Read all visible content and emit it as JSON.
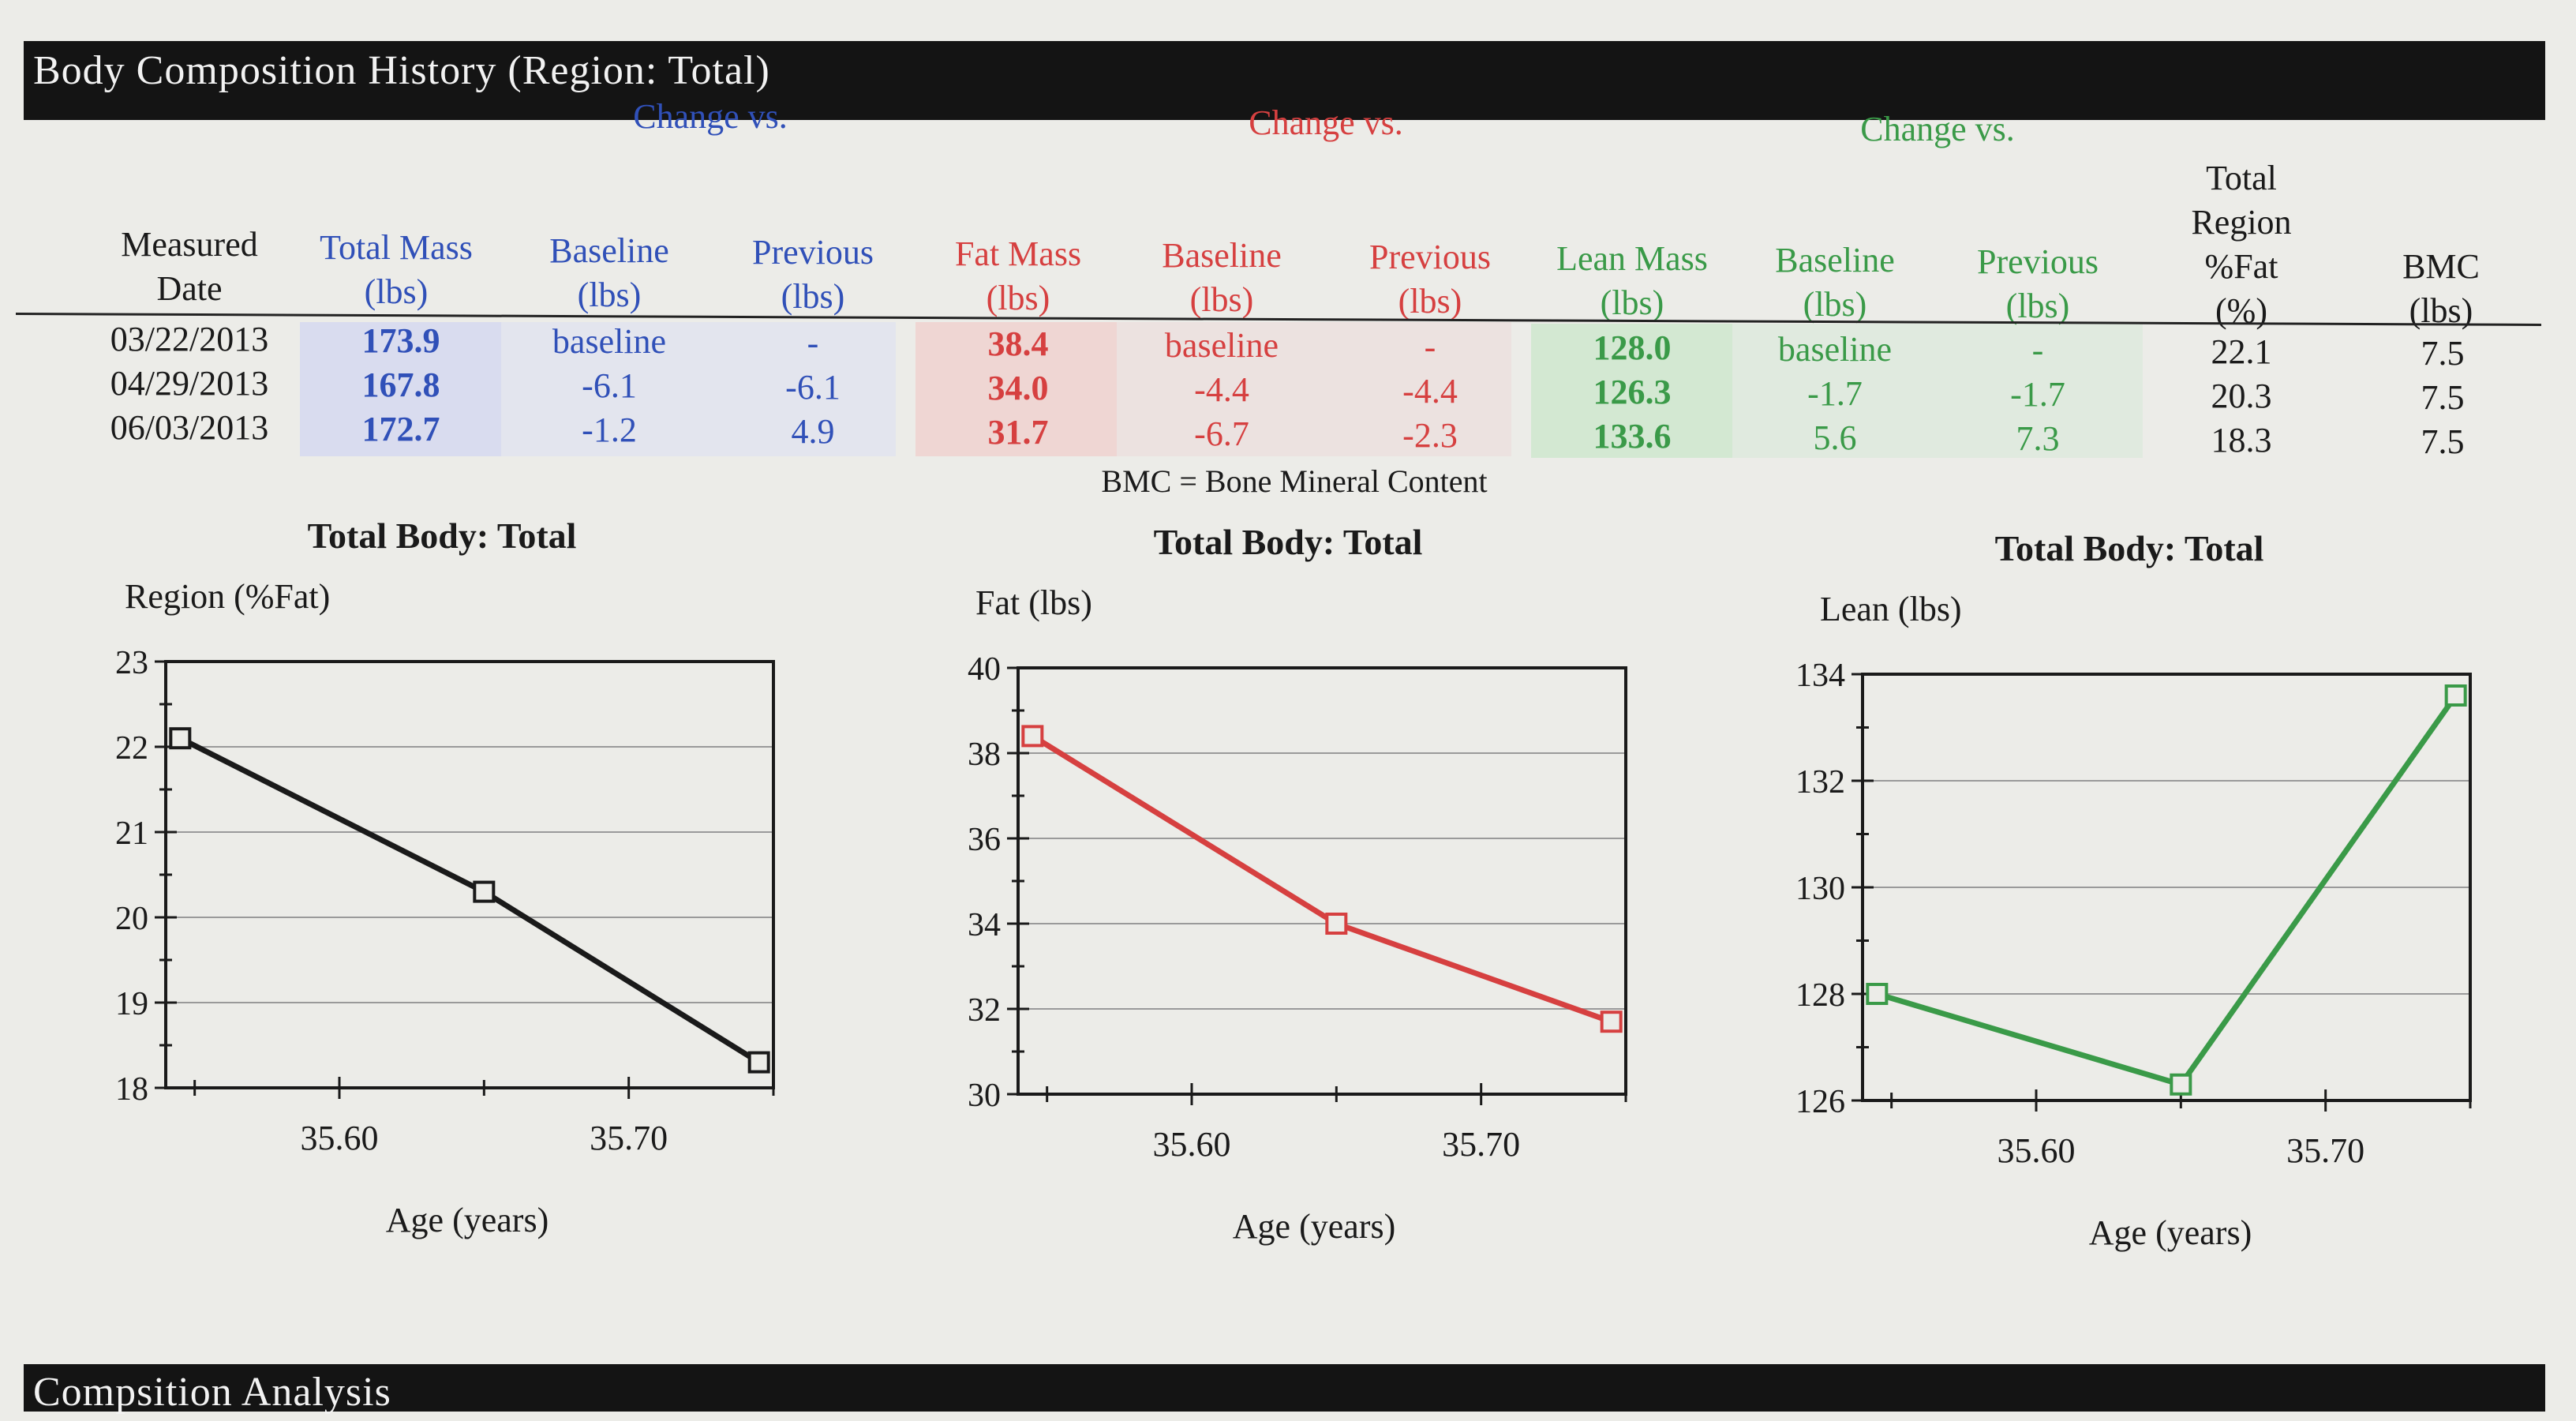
{
  "header": {
    "title": "Body Composition History (Region: Total)"
  },
  "footer": {
    "title": "Compsition Analysis"
  },
  "table": {
    "group_labels": {
      "total": "Change vs.",
      "fat": "Change vs.",
      "lean": "Change vs."
    },
    "columns": {
      "date": "Measured\nDate",
      "total_mass": "Total Mass\n(lbs)",
      "total_baseline": "Baseline\n(lbs)",
      "total_previous": "Previous\n(lbs)",
      "fat_mass": "Fat Mass\n(lbs)",
      "fat_baseline": "Baseline\n(lbs)",
      "fat_previous": "Previous\n(lbs)",
      "lean_mass": "Lean Mass\n(lbs)",
      "lean_baseline": "Baseline\n(lbs)",
      "lean_previous": "Previous\n(lbs)",
      "region_fat": "Total\nRegion\n%Fat\n(%)",
      "bmc": "BMC\n(lbs)"
    },
    "rows": [
      {
        "date": "03/22/2013",
        "total_mass": "173.9",
        "total_baseline": "baseline",
        "total_previous": "-",
        "fat_mass": "38.4",
        "fat_baseline": "baseline",
        "fat_previous": "-",
        "lean_mass": "128.0",
        "lean_baseline": "baseline",
        "lean_previous": "-",
        "region_fat": "22.1",
        "bmc": "7.5"
      },
      {
        "date": "04/29/2013",
        "total_mass": "167.8",
        "total_baseline": "-6.1",
        "total_previous": "-6.1",
        "fat_mass": "34.0",
        "fat_baseline": "-4.4",
        "fat_previous": "-4.4",
        "lean_mass": "126.3",
        "lean_baseline": "-1.7",
        "lean_previous": "-1.7",
        "region_fat": "20.3",
        "bmc": "7.5"
      },
      {
        "date": "06/03/2013",
        "total_mass": "172.7",
        "total_baseline": "-1.2",
        "total_previous": "4.9",
        "fat_mass": "31.7",
        "fat_baseline": "-6.7",
        "fat_previous": "-2.3",
        "lean_mass": "133.6",
        "lean_baseline": "5.6",
        "lean_previous": "7.3",
        "region_fat": "18.3",
        "bmc": "7.5"
      }
    ],
    "footnote": "BMC = Bone Mineral Content"
  },
  "colors": {
    "total": "#3050b8",
    "fat": "#d64040",
    "lean": "#3a9a48",
    "region": "#1a1a1a"
  },
  "chart_data": [
    {
      "type": "line",
      "title": "Total Body: Total",
      "ylabel": "Region (%Fat)",
      "xlabel": "Age (years)",
      "x": [
        35.545,
        35.65,
        35.745
      ],
      "values": [
        22.1,
        20.3,
        18.3
      ],
      "xlim": [
        35.54,
        35.75
      ],
      "ylim": [
        18,
        23
      ],
      "yticks": [
        18,
        19,
        20,
        21,
        22,
        23
      ],
      "xticks": [
        35.6,
        35.7
      ],
      "xtick_labels": [
        "35.60",
        "35.70"
      ],
      "grid": true,
      "color": "#1a1a1a"
    },
    {
      "type": "line",
      "title": "Total Body: Total",
      "ylabel": "Fat (lbs)",
      "xlabel": "Age (years)",
      "x": [
        35.545,
        35.65,
        35.745
      ],
      "values": [
        38.4,
        34.0,
        31.7
      ],
      "xlim": [
        35.54,
        35.75
      ],
      "ylim": [
        30,
        40
      ],
      "yticks": [
        30,
        32,
        34,
        36,
        38,
        40
      ],
      "xticks": [
        35.6,
        35.7
      ],
      "xtick_labels": [
        "35.60",
        "35.70"
      ],
      "grid": true,
      "color": "#d64040"
    },
    {
      "type": "line",
      "title": "Total Body: Total",
      "ylabel": "Lean (lbs)",
      "xlabel": "Age (years)",
      "x": [
        35.545,
        35.65,
        35.745
      ],
      "values": [
        128.0,
        126.3,
        133.6
      ],
      "xlim": [
        35.54,
        35.75
      ],
      "ylim": [
        126,
        134
      ],
      "yticks": [
        126,
        128,
        130,
        132,
        134
      ],
      "xticks": [
        35.6,
        35.7
      ],
      "xtick_labels": [
        "35.60",
        "35.70"
      ],
      "grid": true,
      "color": "#3a9a48"
    }
  ]
}
